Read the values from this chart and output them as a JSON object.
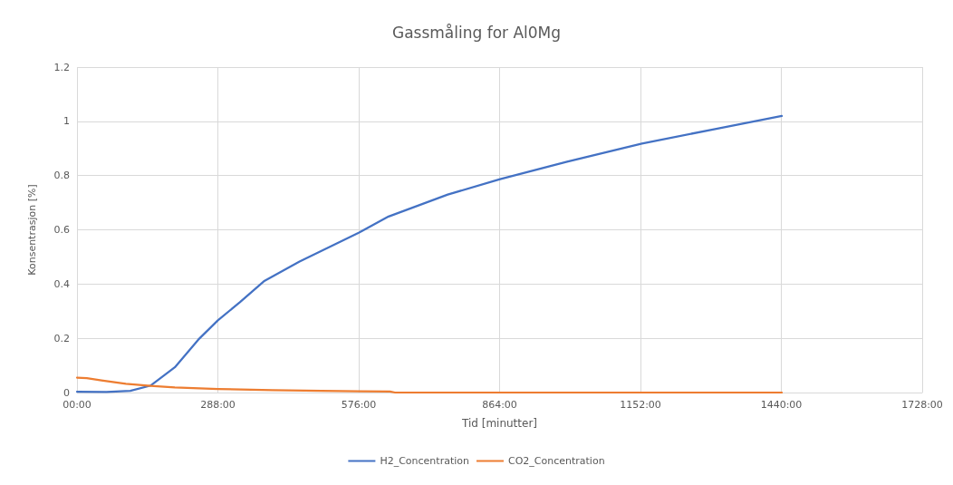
{
  "chart_data": {
    "type": "line",
    "title": "Gassmåling for Al0Mg",
    "xlabel": "Tid [minutter]",
    "ylabel": "Konsentrasjon [%]",
    "xlim": [
      0,
      1728
    ],
    "xticks": [
      {
        "value": 0,
        "label": "00:00"
      },
      {
        "value": 288,
        "label": "288:00"
      },
      {
        "value": 576,
        "label": "576:00"
      },
      {
        "value": 864,
        "label": "864:00"
      },
      {
        "value": 1152,
        "label": "1152:00"
      },
      {
        "value": 1440,
        "label": "1440:00"
      },
      {
        "value": 1728,
        "label": "1728:00"
      }
    ],
    "ylim": [
      0,
      1.2
    ],
    "yticks": [
      0,
      0.2,
      0.4,
      0.6,
      0.8,
      1,
      1.2
    ],
    "grid": true,
    "legend": "bottom",
    "marker": "none",
    "line_style": "solid",
    "series": [
      {
        "name": "H2_Concentration",
        "color": "#4472c4",
        "x": [
          0,
          60,
          109,
          151,
          200,
          248,
          288,
          333,
          382,
          455,
          576,
          637,
          758,
          865,
          1002,
          1155,
          1300,
          1441
        ],
        "values": [
          0.003,
          0.002,
          0.006,
          0.026,
          0.093,
          0.195,
          0.266,
          0.333,
          0.41,
          0.483,
          0.589,
          0.649,
          0.73,
          0.787,
          0.851,
          0.918,
          0.97,
          1.02
        ]
      },
      {
        "name": "CO2_Concentration",
        "color": "#ed7d31",
        "x": [
          0,
          20,
          50,
          100,
          150,
          200,
          288,
          400,
          500,
          576,
          640,
          650,
          1000,
          1441
        ],
        "values": [
          0.055,
          0.053,
          0.045,
          0.032,
          0.025,
          0.019,
          0.013,
          0.009,
          0.006,
          0.005,
          0.004,
          0,
          0,
          0
        ]
      }
    ]
  }
}
